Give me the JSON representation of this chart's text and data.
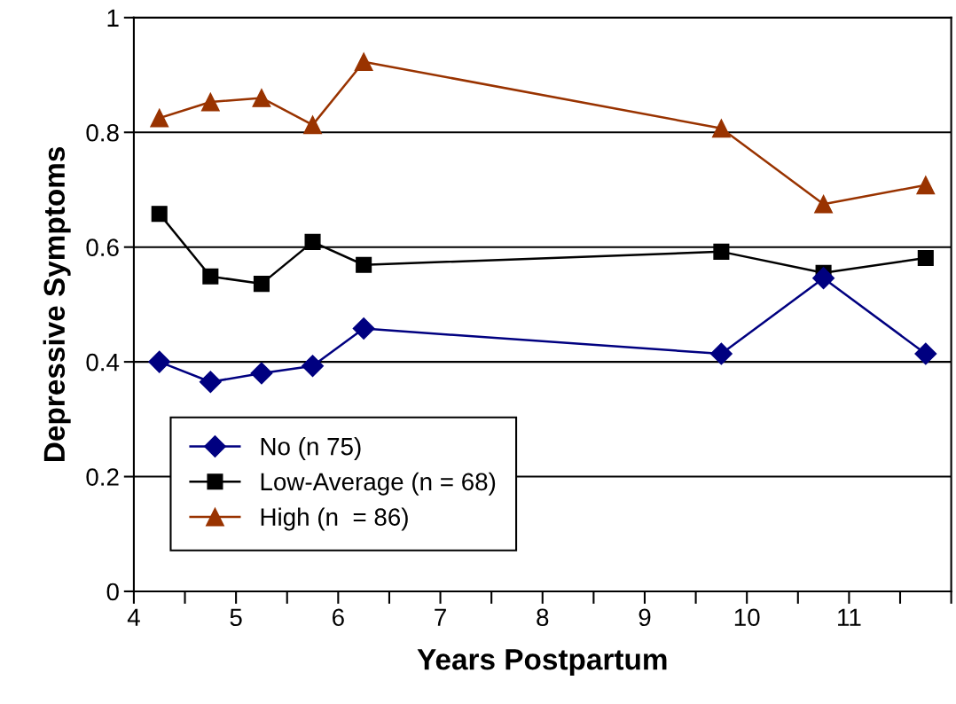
{
  "chart_data": {
    "type": "line",
    "xlabel": "Years Postpartum",
    "ylabel": "Depressive Symptoms",
    "x": [
      4.25,
      4.75,
      5.25,
      5.75,
      6.25,
      9.75,
      10.75,
      11.75
    ],
    "series": [
      {
        "name": "No (n 75)",
        "color": "#000080",
        "marker": "diamond",
        "values": [
          0.4,
          0.365,
          0.38,
          0.393,
          0.458,
          0.414,
          0.546,
          0.414
        ]
      },
      {
        "name": "Low-Average (n = 68)",
        "color": "#000000",
        "marker": "square",
        "values": [
          0.658,
          0.549,
          0.536,
          0.609,
          0.569,
          0.592,
          0.555,
          0.581
        ]
      },
      {
        "name": "High (n  = 86)",
        "color": "#993300",
        "marker": "triangle",
        "values": [
          0.825,
          0.853,
          0.86,
          0.813,
          0.923,
          0.807,
          0.675,
          0.708
        ]
      }
    ],
    "xlim": [
      4,
      12
    ],
    "ylim": [
      0,
      1
    ],
    "xticks": [
      4,
      {
        "value": 4.5,
        "label": null
      },
      5,
      {
        "value": 5.5,
        "label": null
      },
      6,
      {
        "value": 6.5,
        "label": null
      },
      7,
      {
        "value": 7.5,
        "label": null
      },
      8,
      {
        "value": 8.5,
        "label": null
      },
      9,
      {
        "value": 9.5,
        "label": null
      },
      10,
      {
        "value": 10.5,
        "label": null
      },
      11,
      {
        "value": 11.5,
        "label": null
      },
      {
        "value": 12,
        "label": null
      }
    ],
    "yticks": [
      0,
      0.2,
      0.4,
      0.6,
      0.8,
      1
    ],
    "grid": "y",
    "legend": "bottom left",
    "line_style": "solid"
  }
}
